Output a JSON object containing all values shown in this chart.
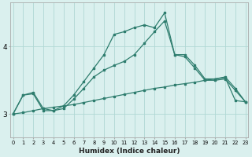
{
  "xlabel": "Humidex (Indice chaleur)",
  "background_color": "#daf0ee",
  "grid_color": "#b0d8d4",
  "line_color": "#2e7d6e",
  "x_ticks": [
    0,
    1,
    2,
    3,
    4,
    5,
    6,
    7,
    8,
    9,
    10,
    11,
    12,
    13,
    14,
    15,
    16,
    17,
    18,
    19,
    20,
    21,
    22,
    23
  ],
  "y_ticks": [
    3,
    4
  ],
  "ylim": [
    2.65,
    4.65
  ],
  "xlim": [
    -0.3,
    23.3
  ],
  "line1_x": [
    0,
    1,
    2,
    3,
    4,
    5,
    6,
    7,
    8,
    9,
    10,
    11,
    12,
    13,
    14,
    15,
    16,
    17,
    18,
    19,
    20,
    21,
    22,
    23
  ],
  "line1_y": [
    3.0,
    3.02,
    3.05,
    3.08,
    3.1,
    3.12,
    3.14,
    3.17,
    3.2,
    3.23,
    3.26,
    3.29,
    3.32,
    3.35,
    3.38,
    3.4,
    3.43,
    3.45,
    3.47,
    3.5,
    3.52,
    3.54,
    3.2,
    3.18
  ],
  "line2_x": [
    0,
    1,
    2,
    3,
    4,
    5,
    6,
    7,
    8,
    9,
    10,
    11,
    12,
    13,
    14,
    15,
    16,
    17,
    18,
    19,
    20,
    21,
    22,
    23
  ],
  "line2_y": [
    3.0,
    3.28,
    3.3,
    3.05,
    3.05,
    3.08,
    3.22,
    3.38,
    3.55,
    3.65,
    3.72,
    3.78,
    3.88,
    4.05,
    4.22,
    4.38,
    3.88,
    3.85,
    3.68,
    3.5,
    3.5,
    3.52,
    3.35,
    3.18
  ],
  "line3_x": [
    0,
    1,
    2,
    3,
    4,
    5,
    6,
    7,
    8,
    9,
    10,
    11,
    12,
    13,
    14,
    15,
    16,
    17,
    18,
    19,
    20,
    21,
    22,
    23
  ],
  "line3_y": [
    3.0,
    3.28,
    3.32,
    3.08,
    3.05,
    3.12,
    3.28,
    3.48,
    3.68,
    3.88,
    4.18,
    4.22,
    4.28,
    4.32,
    4.28,
    4.5,
    3.88,
    3.88,
    3.72,
    3.52,
    3.52,
    3.55,
    3.38,
    3.18
  ]
}
